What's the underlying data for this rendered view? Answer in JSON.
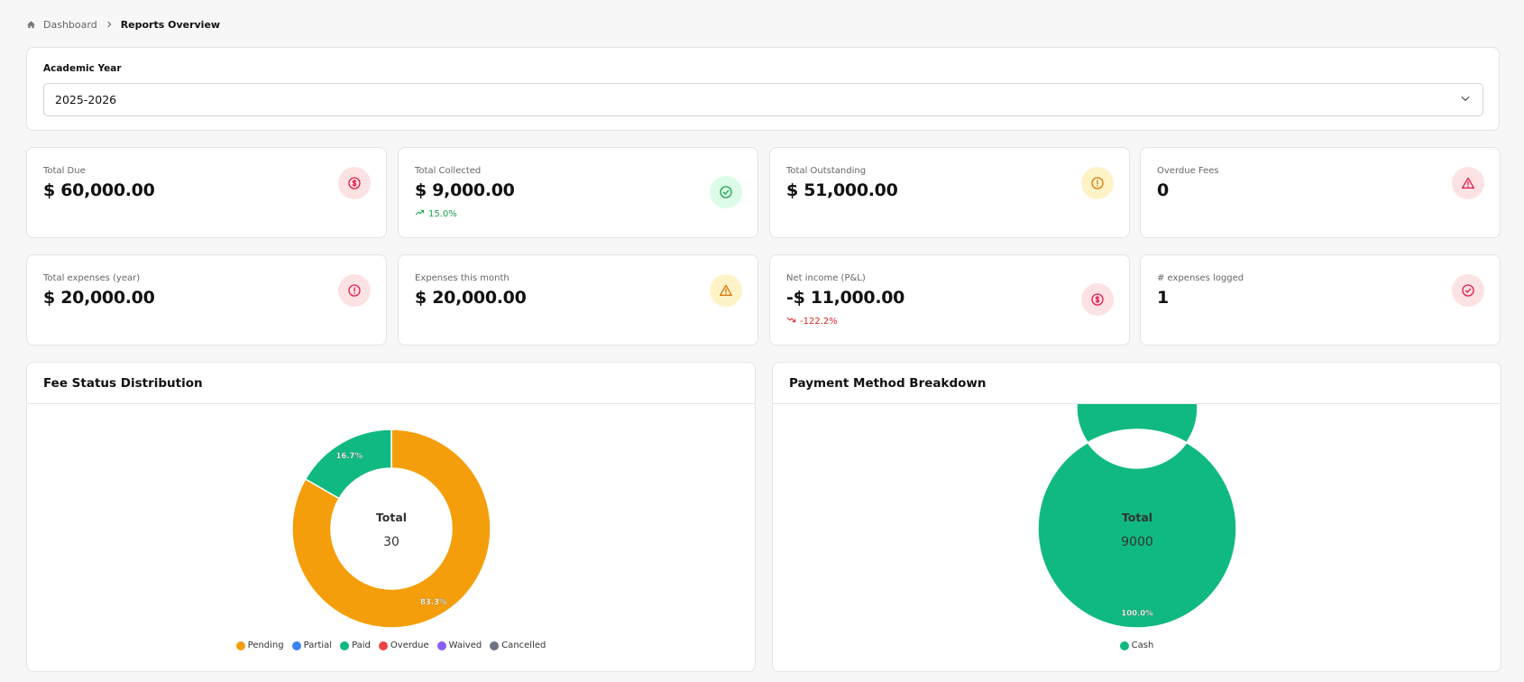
{
  "breadcrumb": {
    "home": "Dashboard",
    "current": "Reports Overview"
  },
  "academic_year": {
    "label": "Academic Year",
    "selected": "2025-2026"
  },
  "stats": [
    {
      "label": "Total Due",
      "value": "$ 60,000.00",
      "icon": "dollar-icon",
      "tone": "red"
    },
    {
      "label": "Total Collected",
      "value": "$ 9,000.00",
      "trend": "15.0%",
      "trend_dir": "up",
      "icon": "check-circle-icon",
      "tone": "green"
    },
    {
      "label": "Total Outstanding",
      "value": "$ 51,000.00",
      "icon": "alert-circle-icon",
      "tone": "yellow"
    },
    {
      "label": "Overdue Fees",
      "value": "0",
      "icon": "warning-triangle-icon",
      "tone": "red"
    },
    {
      "label": "Total expenses (year)",
      "value": "$ 20,000.00",
      "icon": "alert-circle-icon",
      "tone": "red"
    },
    {
      "label": "Expenses this month",
      "value": "$ 20,000.00",
      "icon": "warning-triangle-icon",
      "tone": "yellow"
    },
    {
      "label": "Net income (P&L)",
      "value": "-$ 11,000.00",
      "trend": "-122.2%",
      "trend_dir": "down",
      "icon": "dollar-icon",
      "tone": "red"
    },
    {
      "label": "# expenses logged",
      "value": "1",
      "icon": "check-circle-icon",
      "tone": "red"
    }
  ],
  "colors": {
    "pending": "#f59e0b",
    "partial": "#3b82f6",
    "paid": "#10b981",
    "overdue": "#ef4444",
    "waived": "#8b5cf6",
    "cancelled": "#6b7280",
    "cash": "#10b981",
    "red_icon": "#e11d48",
    "green_icon": "#16a34a",
    "yellow_icon": "#d97706"
  },
  "chart_data": [
    {
      "type": "pie",
      "title": "Fee Status Distribution",
      "center_label": "Total",
      "center_value": "30",
      "categories": [
        "Pending",
        "Partial",
        "Paid",
        "Overdue",
        "Waived",
        "Cancelled"
      ],
      "values": [
        25,
        0,
        5,
        0,
        0,
        0
      ],
      "data_labels": [
        "83.3%",
        "",
        "16.7%",
        "",
        "",
        ""
      ],
      "colors": [
        "#f59e0b",
        "#3b82f6",
        "#10b981",
        "#ef4444",
        "#8b5cf6",
        "#6b7280"
      ],
      "legend_position": "bottom"
    },
    {
      "type": "pie",
      "title": "Payment Method Breakdown",
      "center_label": "Total",
      "center_value": "9000",
      "categories": [
        "Cash"
      ],
      "values": [
        9000
      ],
      "data_labels": [
        "100.0%"
      ],
      "colors": [
        "#10b981"
      ],
      "legend_position": "bottom"
    }
  ]
}
